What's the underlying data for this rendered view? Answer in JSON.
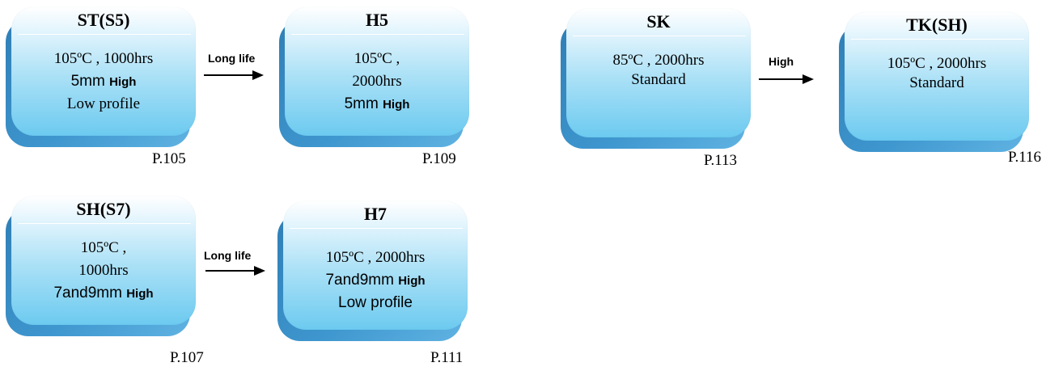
{
  "boxes": {
    "st": {
      "title": "ST(S5)",
      "l1": "105ºC , 1000hrs",
      "l2a": "5mm ",
      "l2b": "High",
      "l3": "Low profile",
      "page": "P.105"
    },
    "h5": {
      "title": "H5",
      "l1": "105ºC ,",
      "l2": "2000hrs",
      "l3a": "5mm ",
      "l3b": "High",
      "page": "P.109"
    },
    "sk": {
      "title": "SK",
      "l1": "85ºC , 2000hrs",
      "l2": "Standard",
      "page": "P.113"
    },
    "tk": {
      "title": "TK(SH)",
      "l1": "105ºC , 2000hrs",
      "l2": "Standard",
      "page": "P.116"
    },
    "sh": {
      "title": "SH(S7)",
      "l1": "105ºC ,",
      "l2": "1000hrs",
      "l3a": "7and9mm ",
      "l3b": "High",
      "page": "P.107"
    },
    "h7": {
      "title": "H7",
      "l1": "105ºC , 2000hrs",
      "l2a": "7and9mm ",
      "l2b": "High",
      "l3": "Low profile",
      "page": "P.111"
    }
  },
  "arrows": {
    "a1": "Long life",
    "a2": "High",
    "a3": "Long life"
  }
}
